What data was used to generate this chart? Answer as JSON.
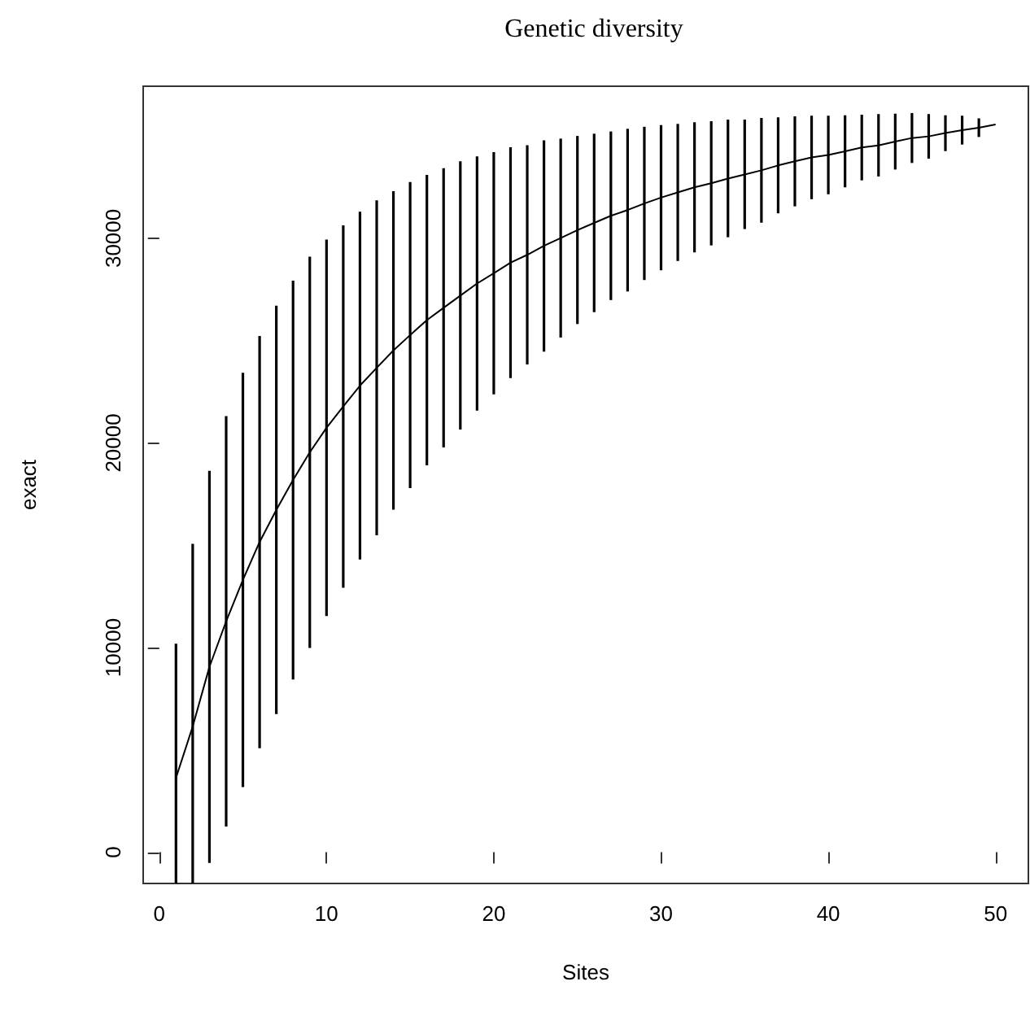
{
  "chart_data": {
    "type": "line",
    "title": "Genetic diversity",
    "xlabel": "Sites",
    "ylabel": "exact",
    "x": [
      1,
      2,
      3,
      4,
      5,
      6,
      7,
      8,
      9,
      10,
      11,
      12,
      13,
      14,
      15,
      16,
      17,
      18,
      19,
      20,
      21,
      22,
      23,
      24,
      25,
      26,
      27,
      28,
      29,
      30,
      31,
      32,
      33,
      34,
      35,
      36,
      37,
      38,
      39,
      40,
      41,
      42,
      43,
      44,
      45,
      46,
      47,
      48,
      49,
      50
    ],
    "values": [
      3630,
      6140,
      9055,
      11280,
      13300,
      15160,
      16730,
      18190,
      19540,
      20740,
      21780,
      22800,
      23670,
      24520,
      25270,
      26000,
      26600,
      27200,
      27790,
      28290,
      28810,
      29190,
      29630,
      30010,
      30400,
      30750,
      31100,
      31380,
      31700,
      31990,
      32240,
      32490,
      32690,
      32920,
      33120,
      33320,
      33560,
      33760,
      33950,
      34070,
      34250,
      34440,
      34540,
      34730,
      34900,
      34980,
      35140,
      35280,
      35400,
      35560
    ],
    "errors": [
      [
        -1530,
        10190
      ],
      [
        -1530,
        15070
      ],
      [
        -530,
        18640
      ],
      [
        1250,
        21310
      ],
      [
        3180,
        23430
      ],
      [
        5080,
        25230
      ],
      [
        6750,
        26710
      ],
      [
        8440,
        27930
      ],
      [
        9980,
        29100
      ],
      [
        11540,
        29940
      ],
      [
        12920,
        30630
      ],
      [
        14300,
        31300
      ],
      [
        15490,
        31850
      ],
      [
        16740,
        32300
      ],
      [
        17790,
        32750
      ],
      [
        18900,
        33100
      ],
      [
        19780,
        33420
      ],
      [
        20650,
        33760
      ],
      [
        21580,
        34000
      ],
      [
        22370,
        34210
      ],
      [
        23170,
        34450
      ],
      [
        23830,
        34550
      ],
      [
        24460,
        34790
      ],
      [
        25150,
        34870
      ],
      [
        25810,
        35000
      ],
      [
        26390,
        35110
      ],
      [
        26980,
        35220
      ],
      [
        27400,
        35350
      ],
      [
        27960,
        35450
      ],
      [
        28440,
        35530
      ],
      [
        28890,
        35590
      ],
      [
        29310,
        35670
      ],
      [
        29650,
        35720
      ],
      [
        30050,
        35800
      ],
      [
        30450,
        35800
      ],
      [
        30760,
        35880
      ],
      [
        31220,
        35910
      ],
      [
        31560,
        35960
      ],
      [
        31910,
        35990
      ],
      [
        32150,
        35990
      ],
      [
        32490,
        36010
      ],
      [
        32830,
        36040
      ],
      [
        33020,
        36070
      ],
      [
        33360,
        36090
      ],
      [
        33680,
        36120
      ],
      [
        33890,
        36070
      ],
      [
        34260,
        36010
      ],
      [
        34580,
        35990
      ],
      [
        34950,
        35860
      ],
      null
    ],
    "color": "#000000",
    "marker": "none",
    "line_style": "solid",
    "xlim": [
      -0.96,
      51.96
    ],
    "xticks": [
      0,
      10,
      20,
      30,
      40,
      50
    ],
    "ylim": [
      -1530,
      37430
    ],
    "yticks": [
      0,
      10000,
      20000,
      30000
    ]
  }
}
